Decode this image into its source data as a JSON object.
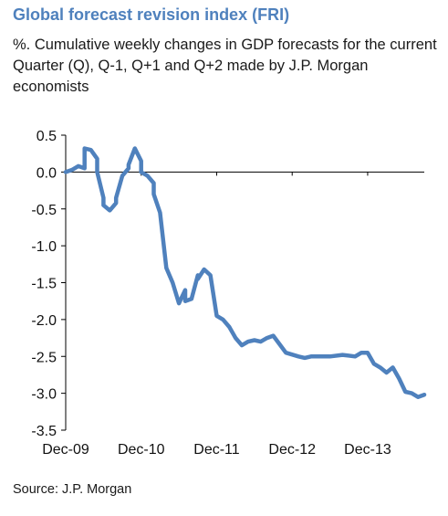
{
  "header": {
    "title": "Global forecast revision index (FRI)",
    "subtitle": "%. Cumulative weekly changes in GDP forecasts for the current Quarter (Q), Q-1, Q+1 and Q+2 made by J.P. Morgan economists"
  },
  "footer": {
    "source": "Source: J.P. Morgan"
  },
  "chart_data": {
    "type": "line",
    "title": "Global forecast revision index (FRI)",
    "xlabel": "",
    "ylabel": "",
    "ylim": [
      -3.5,
      0.5
    ],
    "yticks": [
      "0.5",
      "0.0",
      "-0.5",
      "-1.0",
      "-1.5",
      "-2.0",
      "-2.5",
      "-3.0",
      "-3.5"
    ],
    "ytick_values": [
      0.5,
      0.0,
      -0.5,
      -1.0,
      -1.5,
      -2.0,
      -2.5,
      -3.0,
      -3.5
    ],
    "xlim": [
      "2009-12",
      "2014-09"
    ],
    "xticks": [
      "Dec-09",
      "Dec-10",
      "Dec-11",
      "Dec-12",
      "Dec-13"
    ],
    "xtick_values": [
      "2009-12",
      "2010-12",
      "2011-12",
      "2012-12",
      "2013-12"
    ],
    "grid": false,
    "legend": "none",
    "line_color": "#4f81bd",
    "series": [
      {
        "x": [
          "2009-12",
          "2010-01",
          "2010-02",
          "2010-03",
          "2010-03",
          "2010-04",
          "2010-05",
          "2010-05",
          "2010-06",
          "2010-06",
          "2010-07",
          "2010-08",
          "2010-08",
          "2010-09",
          "2010-10",
          "2010-10",
          "2010-11",
          "2010-12",
          "2010-12",
          "2011-01",
          "2011-02",
          "2011-02",
          "2011-03",
          "2011-04",
          "2011-05",
          "2011-06",
          "2011-07",
          "2011-07",
          "2011-08",
          "2011-09",
          "2011-09",
          "2011-10",
          "2011-11",
          "2011-12",
          "2012-01",
          "2012-02",
          "2012-03",
          "2012-04",
          "2012-04",
          "2012-05",
          "2012-06",
          "2012-07",
          "2012-08",
          "2012-09",
          "2012-11",
          "2013-01",
          "2013-02",
          "2013-03",
          "2013-05",
          "2013-06",
          "2013-08",
          "2013-10",
          "2013-11",
          "2013-12",
          "2014-01",
          "2014-02",
          "2014-03",
          "2014-04",
          "2014-05",
          "2014-06",
          "2014-07",
          "2014-08",
          "2014-09"
        ],
        "y": [
          0.0,
          0.03,
          0.08,
          0.05,
          0.32,
          0.3,
          0.18,
          0.0,
          -0.35,
          -0.45,
          -0.52,
          -0.42,
          -0.35,
          -0.05,
          0.05,
          0.1,
          0.32,
          0.15,
          0.0,
          -0.05,
          -0.15,
          -0.3,
          -0.55,
          -1.3,
          -1.5,
          -1.78,
          -1.6,
          -1.75,
          -1.72,
          -1.4,
          -1.45,
          -1.32,
          -1.4,
          -1.95,
          -2.0,
          -2.1,
          -2.25,
          -2.35,
          -2.35,
          -2.3,
          -2.28,
          -2.3,
          -2.25,
          -2.22,
          -2.45,
          -2.5,
          -2.52,
          -2.5,
          -2.5,
          -2.5,
          -2.48,
          -2.5,
          -2.45,
          -2.45,
          -2.6,
          -2.65,
          -2.72,
          -2.65,
          -2.8,
          -2.98,
          -3.0,
          -3.05,
          -3.02
        ]
      }
    ]
  }
}
